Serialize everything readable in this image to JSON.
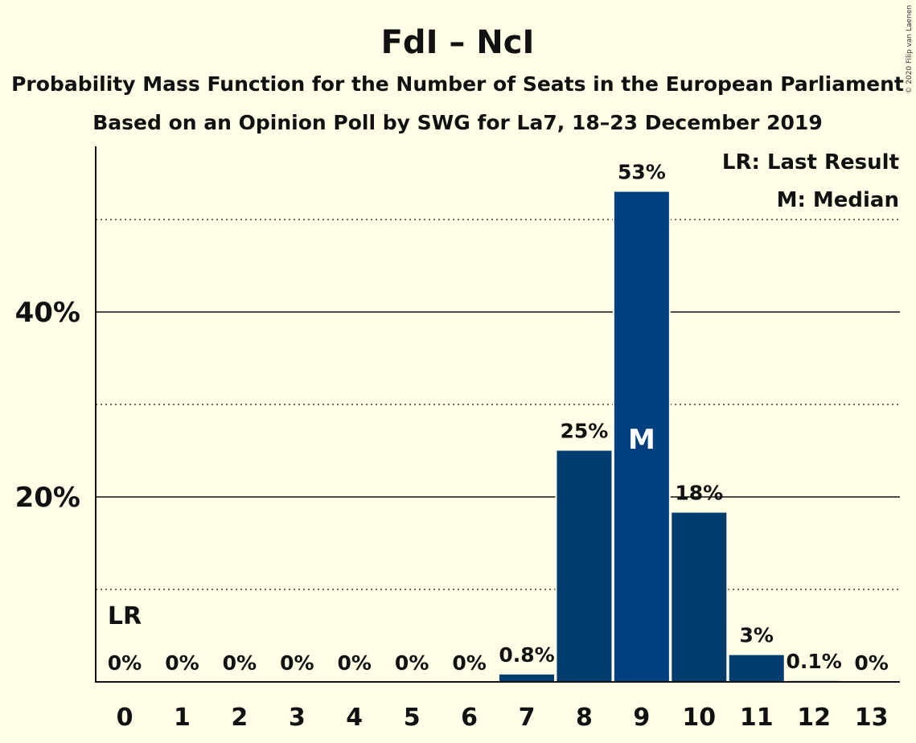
{
  "title": "FdI – NcI",
  "subtitle1": "Probability Mass Function for the Number of Seats in the European Parliament",
  "subtitle2": "Based on an Opinion Poll by SWG for La7, 18–23 December 2019",
  "copyright": "© 2020 Filip van Laenen",
  "legend": {
    "last_result": "LR: Last Result",
    "median": "M: Median"
  },
  "colors": {
    "background": "#FFFEE6",
    "bar_dark": "#003D6E",
    "bar_mid": "#003F80"
  },
  "chart_data": {
    "type": "bar",
    "categories": [
      "0",
      "1",
      "2",
      "3",
      "4",
      "5",
      "6",
      "7",
      "8",
      "9",
      "10",
      "11",
      "12",
      "13"
    ],
    "values": [
      0,
      0,
      0,
      0,
      0,
      0,
      0,
      0.8,
      25,
      53,
      18.3,
      2.9,
      0.1,
      0
    ],
    "data_labels": [
      "0%",
      "0%",
      "0%",
      "0%",
      "0%",
      "0%",
      "0%",
      "0.8%",
      "25%",
      "53%",
      "18%",
      "3%",
      "0.1%",
      "0%"
    ],
    "ylim": [
      0,
      58
    ],
    "y_ticks_major": [
      {
        "value": 20,
        "label": "20%"
      },
      {
        "value": 40,
        "label": "40%"
      }
    ],
    "y_ticks_minor": [
      10,
      30,
      50
    ],
    "median_index": 9,
    "median_label": "M",
    "last_result_index": 0,
    "last_result_label": "LR"
  }
}
